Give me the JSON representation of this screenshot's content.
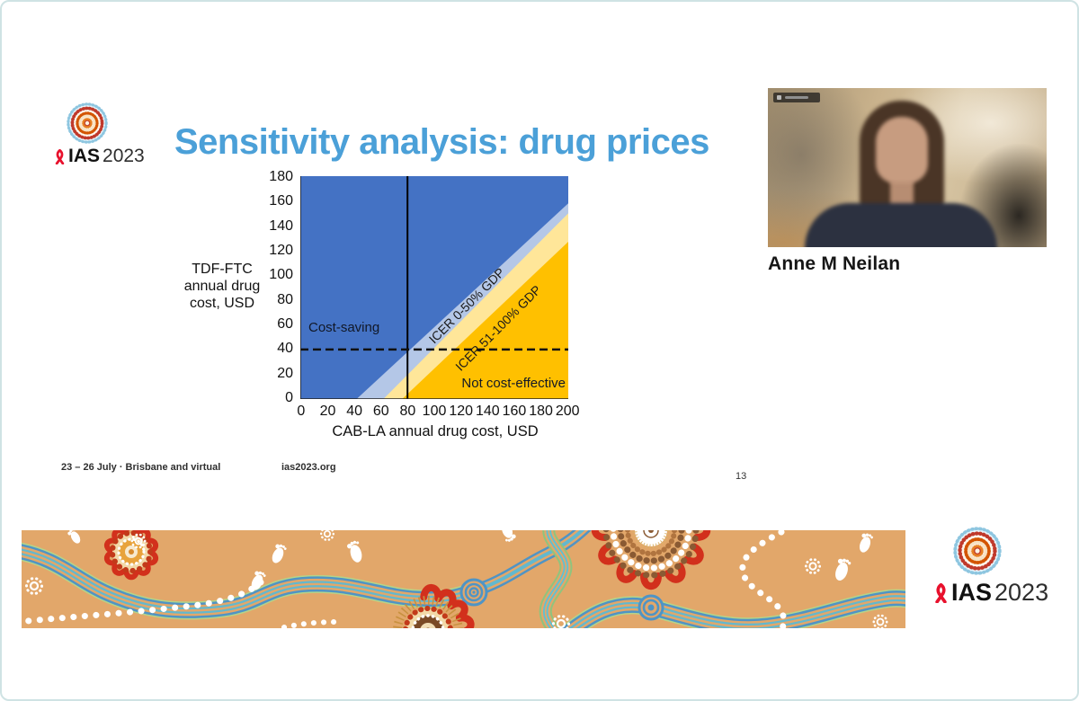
{
  "page": {
    "background": "#ffffff",
    "border_color": "#cfe3e4"
  },
  "logo": {
    "ias": "IAS",
    "year": "2023"
  },
  "slide": {
    "title": "Sensitivity analysis: drug prices",
    "title_color": "#4BA0D8",
    "footer": {
      "dates": "23 – 26 July · Brisbane and virtual",
      "website": "ias2023.org",
      "page_number": "13"
    }
  },
  "speaker": {
    "name": "Anne M Neilan"
  },
  "chart_data": {
    "type": "area",
    "title": "Sensitivity analysis: drug prices",
    "xlabel": "CAB-LA annual drug cost, USD",
    "ylabel": "TDF-FTC annual drug cost, USD",
    "xlim": [
      0,
      200
    ],
    "ylim": [
      0,
      180
    ],
    "xticks": [
      0,
      20,
      40,
      60,
      80,
      100,
      120,
      140,
      160,
      180,
      200
    ],
    "yticks": [
      180,
      160,
      140,
      120,
      100,
      80,
      60,
      40,
      20,
      0
    ],
    "grid": false,
    "legend": false,
    "regions": [
      {
        "label": "Cost-saving",
        "color": "#4472C4",
        "position": "upper-left"
      },
      {
        "label": "ICER 0-50% GDP",
        "color": "#B4C7E7",
        "position": "diagonal-band"
      },
      {
        "label": "ICER 51-100% GDP",
        "color": "#FFE699",
        "position": "diagonal-band"
      },
      {
        "label": "Not cost-effective",
        "color": "#FFC000",
        "position": "lower-right"
      }
    ],
    "band_boundaries": [
      {
        "from_xy": [
          42,
          0
        ],
        "to_xy": [
          200,
          158
        ]
      },
      {
        "from_xy": [
          62,
          0
        ],
        "to_xy": [
          200,
          150
        ]
      },
      {
        "from_xy": [
          76,
          0
        ],
        "to_xy": [
          200,
          127
        ]
      }
    ],
    "reference_lines": [
      {
        "type": "vertical-solid",
        "x": 80
      },
      {
        "type": "horizontal-dashed",
        "y": 40
      }
    ]
  }
}
